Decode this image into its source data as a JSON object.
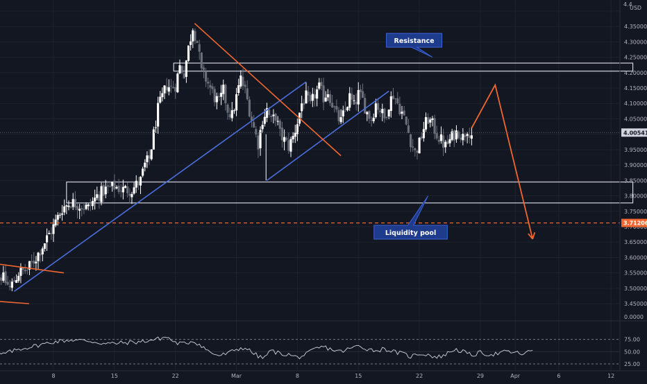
{
  "chart_data": {
    "type": "candlestick",
    "currency_label": "USD",
    "price_axis": {
      "range": [
        3.43,
        4.42
      ],
      "ticks": [
        3.45,
        3.5,
        3.55,
        3.6,
        3.65,
        3.7,
        3.75,
        3.8,
        3.85,
        3.9,
        3.95,
        4.0,
        4.05,
        4.1,
        4.15,
        4.2,
        4.25,
        4.3,
        4.35,
        4.4
      ],
      "tick_labels": [
        "3.45000",
        "3.50000",
        "3.55000",
        "3.60000",
        "3.65000",
        "3.70000",
        "3.75000",
        "3.80000",
        "3.85000",
        "3.90000",
        "3.95000",
        "4.00000",
        "4.05000",
        "4.10000",
        "4.15000",
        "4.20000",
        "4.25000",
        "4.30000",
        "4.35000",
        "4.40000"
      ],
      "top_partial_label": "4.4"
    },
    "time_axis": {
      "labels": [
        {
          "text": "8",
          "day": 8
        },
        {
          "text": "15",
          "day": 15
        },
        {
          "text": "22",
          "day": 22
        },
        {
          "text": "Mar",
          "day": 29
        },
        {
          "text": "8",
          "day": 36
        },
        {
          "text": "15",
          "day": 43
        },
        {
          "text": "22",
          "day": 50
        },
        {
          "text": "29",
          "day": 57
        },
        {
          "text": "Apr",
          "day": 61
        },
        {
          "text": "6",
          "day": 66
        },
        {
          "text": "12",
          "day": 72
        }
      ]
    },
    "price_path": [
      {
        "day": 2.0,
        "price": 3.54
      },
      {
        "day": 3.0,
        "price": 3.5
      },
      {
        "day": 4.0,
        "price": 3.55
      },
      {
        "day": 5.0,
        "price": 3.56
      },
      {
        "day": 6.0,
        "price": 3.6
      },
      {
        "day": 7.0,
        "price": 3.65
      },
      {
        "day": 8.0,
        "price": 3.7
      },
      {
        "day": 9.0,
        "price": 3.76
      },
      {
        "day": 10.0,
        "price": 3.78
      },
      {
        "day": 11.0,
        "price": 3.77
      },
      {
        "day": 12.0,
        "price": 3.76
      },
      {
        "day": 13.0,
        "price": 3.8
      },
      {
        "day": 14.0,
        "price": 3.82
      },
      {
        "day": 15.0,
        "price": 3.83
      },
      {
        "day": 16.0,
        "price": 3.82
      },
      {
        "day": 17.0,
        "price": 3.82
      },
      {
        "day": 18.0,
        "price": 3.85
      },
      {
        "day": 18.5,
        "price": 3.9
      },
      {
        "day": 19.0,
        "price": 3.92
      },
      {
        "day": 19.5,
        "price": 4.0
      },
      {
        "day": 20.0,
        "price": 4.08
      },
      {
        "day": 20.5,
        "price": 4.12
      },
      {
        "day": 21.0,
        "price": 4.16
      },
      {
        "day": 21.5,
        "price": 4.15
      },
      {
        "day": 22.0,
        "price": 4.16
      },
      {
        "day": 22.5,
        "price": 4.22
      },
      {
        "day": 23.0,
        "price": 4.2
      },
      {
        "day": 23.5,
        "price": 4.28
      },
      {
        "day": 24.0,
        "price": 4.35
      },
      {
        "day": 24.5,
        "price": 4.3
      },
      {
        "day": 25.0,
        "price": 4.2
      },
      {
        "day": 25.5,
        "price": 4.18
      },
      {
        "day": 26.0,
        "price": 4.15
      },
      {
        "day": 26.5,
        "price": 4.12
      },
      {
        "day": 27.0,
        "price": 4.1
      },
      {
        "day": 27.5,
        "price": 4.14
      },
      {
        "day": 28.0,
        "price": 4.08
      },
      {
        "day": 28.5,
        "price": 4.06
      },
      {
        "day": 29.0,
        "price": 4.12
      },
      {
        "day": 29.5,
        "price": 4.18
      },
      {
        "day": 30.0,
        "price": 4.14
      },
      {
        "day": 30.5,
        "price": 4.08
      },
      {
        "day": 31.0,
        "price": 4.02
      },
      {
        "day": 31.5,
        "price": 3.97
      },
      {
        "day": 32.0,
        "price": 4.05
      },
      {
        "day": 32.5,
        "price": 4.08
      },
      {
        "day": 33.0,
        "price": 4.04
      },
      {
        "day": 33.5,
        "price": 4.06
      },
      {
        "day": 34.0,
        "price": 4.0
      },
      {
        "day": 34.5,
        "price": 3.98
      },
      {
        "day": 35.0,
        "price": 3.96
      },
      {
        "day": 35.5,
        "price": 3.99
      },
      {
        "day": 36.0,
        "price": 4.04
      },
      {
        "day": 36.5,
        "price": 4.1
      },
      {
        "day": 37.0,
        "price": 4.12
      },
      {
        "day": 37.5,
        "price": 4.09
      },
      {
        "day": 38.0,
        "price": 4.13
      },
      {
        "day": 38.5,
        "price": 4.15
      },
      {
        "day": 39.0,
        "price": 4.12
      },
      {
        "day": 39.5,
        "price": 4.14
      },
      {
        "day": 40.0,
        "price": 4.1
      },
      {
        "day": 40.5,
        "price": 4.06
      },
      {
        "day": 41.0,
        "price": 4.04
      },
      {
        "day": 41.5,
        "price": 4.08
      },
      {
        "day": 42.0,
        "price": 4.12
      },
      {
        "day": 42.5,
        "price": 4.09
      },
      {
        "day": 43.0,
        "price": 4.13
      },
      {
        "day": 43.5,
        "price": 4.11
      },
      {
        "day": 44.0,
        "price": 4.07
      },
      {
        "day": 44.5,
        "price": 4.05
      },
      {
        "day": 45.0,
        "price": 4.1
      },
      {
        "day": 45.5,
        "price": 4.08
      },
      {
        "day": 46.0,
        "price": 4.05
      },
      {
        "day": 46.5,
        "price": 4.1
      },
      {
        "day": 47.0,
        "price": 4.13
      },
      {
        "day": 47.5,
        "price": 4.1
      },
      {
        "day": 48.0,
        "price": 4.07
      },
      {
        "day": 48.5,
        "price": 4.03
      },
      {
        "day": 49.0,
        "price": 3.98
      },
      {
        "day": 49.5,
        "price": 3.94
      },
      {
        "day": 50.0,
        "price": 3.97
      },
      {
        "day": 50.5,
        "price": 4.02
      },
      {
        "day": 51.0,
        "price": 4.05
      },
      {
        "day": 51.5,
        "price": 4.03
      },
      {
        "day": 52.0,
        "price": 4.0
      },
      {
        "day": 52.5,
        "price": 3.98
      },
      {
        "day": 53.0,
        "price": 3.96
      },
      {
        "day": 53.5,
        "price": 3.98
      },
      {
        "day": 54.0,
        "price": 4.0
      },
      {
        "day": 54.5,
        "price": 4.01
      },
      {
        "day": 55.0,
        "price": 3.99
      },
      {
        "day": 55.5,
        "price": 4.02
      },
      {
        "day": 56.0,
        "price": 4.0
      }
    ],
    "price_line": {
      "value": 4.00541,
      "label": "4.00541"
    },
    "level_line": {
      "value": 3.71206,
      "label": "3.71206",
      "style": "dashed",
      "color": "#f1672f"
    },
    "zones": [
      {
        "name": "resistance",
        "y_top": 4.231,
        "y_bottom": 4.205,
        "day_start": 21.8,
        "day_end": 74.5
      },
      {
        "name": "liquidity",
        "y_top": 3.845,
        "y_bottom": 3.777,
        "day_start": 9.5,
        "day_end": 74.5
      }
    ],
    "annotations": [
      {
        "text": "Resistance",
        "anchor_day": 51.5,
        "anchor_price": 4.25,
        "label_day": 49.4,
        "label_price": 4.305
      },
      {
        "text": "Liquidity pool",
        "anchor_day": 51.0,
        "anchor_price": 3.8,
        "label_day": 49.0,
        "label_price": 3.682
      }
    ],
    "trend_lines": [
      {
        "color": "#4a6fdc",
        "points": [
          [
            3.5,
            3.49
          ],
          [
            37.0,
            4.17
          ]
        ]
      },
      {
        "color": "#4a6fdc",
        "points": [
          [
            32.5,
            3.85
          ],
          [
            46.5,
            4.14
          ]
        ]
      },
      {
        "color": "#f1672f",
        "points": [
          [
            24.2,
            4.36
          ],
          [
            41.0,
            3.93
          ]
        ]
      },
      {
        "color": "#f1672f",
        "points": [
          [
            -4.0,
            3.6
          ],
          [
            9.2,
            3.55
          ]
        ]
      },
      {
        "color": "#f1672f",
        "points": [
          [
            -4.0,
            3.47
          ],
          [
            5.2,
            3.45
          ]
        ]
      }
    ],
    "projection": {
      "color": "#f1672f",
      "points": [
        [
          56.0,
          4.02
        ],
        [
          58.7,
          4.16
        ],
        [
          63.0,
          3.66
        ]
      ]
    },
    "rsi": {
      "levels": [
        75,
        50,
        25
      ],
      "level_labels": [
        "75.00",
        "50.00",
        "25.00"
      ],
      "value_label": "50.00",
      "range": [
        15,
        100
      ],
      "path": [
        {
          "day": 0,
          "v": 48
        },
        {
          "day": 2,
          "v": 44
        },
        {
          "day": 4,
          "v": 55
        },
        {
          "day": 6,
          "v": 62
        },
        {
          "day": 8,
          "v": 70
        },
        {
          "day": 10,
          "v": 74
        },
        {
          "day": 12,
          "v": 72
        },
        {
          "day": 14,
          "v": 66
        },
        {
          "day": 16,
          "v": 68
        },
        {
          "day": 18,
          "v": 70
        },
        {
          "day": 20,
          "v": 76
        },
        {
          "day": 21,
          "v": 80
        },
        {
          "day": 22,
          "v": 68
        },
        {
          "day": 23,
          "v": 66
        },
        {
          "day": 24,
          "v": 72
        },
        {
          "day": 25,
          "v": 62
        },
        {
          "day": 26,
          "v": 48
        },
        {
          "day": 27,
          "v": 42
        },
        {
          "day": 28,
          "v": 46
        },
        {
          "day": 29,
          "v": 55
        },
        {
          "day": 30,
          "v": 58
        },
        {
          "day": 31,
          "v": 46
        },
        {
          "day": 32,
          "v": 36
        },
        {
          "day": 33,
          "v": 52
        },
        {
          "day": 34,
          "v": 46
        },
        {
          "day": 35,
          "v": 44
        },
        {
          "day": 36,
          "v": 38
        },
        {
          "day": 37,
          "v": 44
        },
        {
          "day": 38,
          "v": 55
        },
        {
          "day": 39,
          "v": 60
        },
        {
          "day": 40,
          "v": 54
        },
        {
          "day": 41,
          "v": 50
        },
        {
          "day": 42,
          "v": 56
        },
        {
          "day": 43,
          "v": 62
        },
        {
          "day": 44,
          "v": 56
        },
        {
          "day": 45,
          "v": 52
        },
        {
          "day": 46,
          "v": 56
        },
        {
          "day": 47,
          "v": 50
        },
        {
          "day": 48,
          "v": 46
        },
        {
          "day": 49,
          "v": 40
        },
        {
          "day": 50,
          "v": 46
        },
        {
          "day": 51,
          "v": 44
        },
        {
          "day": 52,
          "v": 38
        },
        {
          "day": 53,
          "v": 44
        },
        {
          "day": 54,
          "v": 55
        },
        {
          "day": 55,
          "v": 50
        },
        {
          "day": 56,
          "v": 42
        },
        {
          "day": 57,
          "v": 48
        },
        {
          "day": 58,
          "v": 44
        },
        {
          "day": 59,
          "v": 46
        },
        {
          "day": 60,
          "v": 50
        },
        {
          "day": 61,
          "v": 48
        },
        {
          "day": 62,
          "v": 45
        },
        {
          "day": 63,
          "v": 53
        }
      ]
    }
  }
}
